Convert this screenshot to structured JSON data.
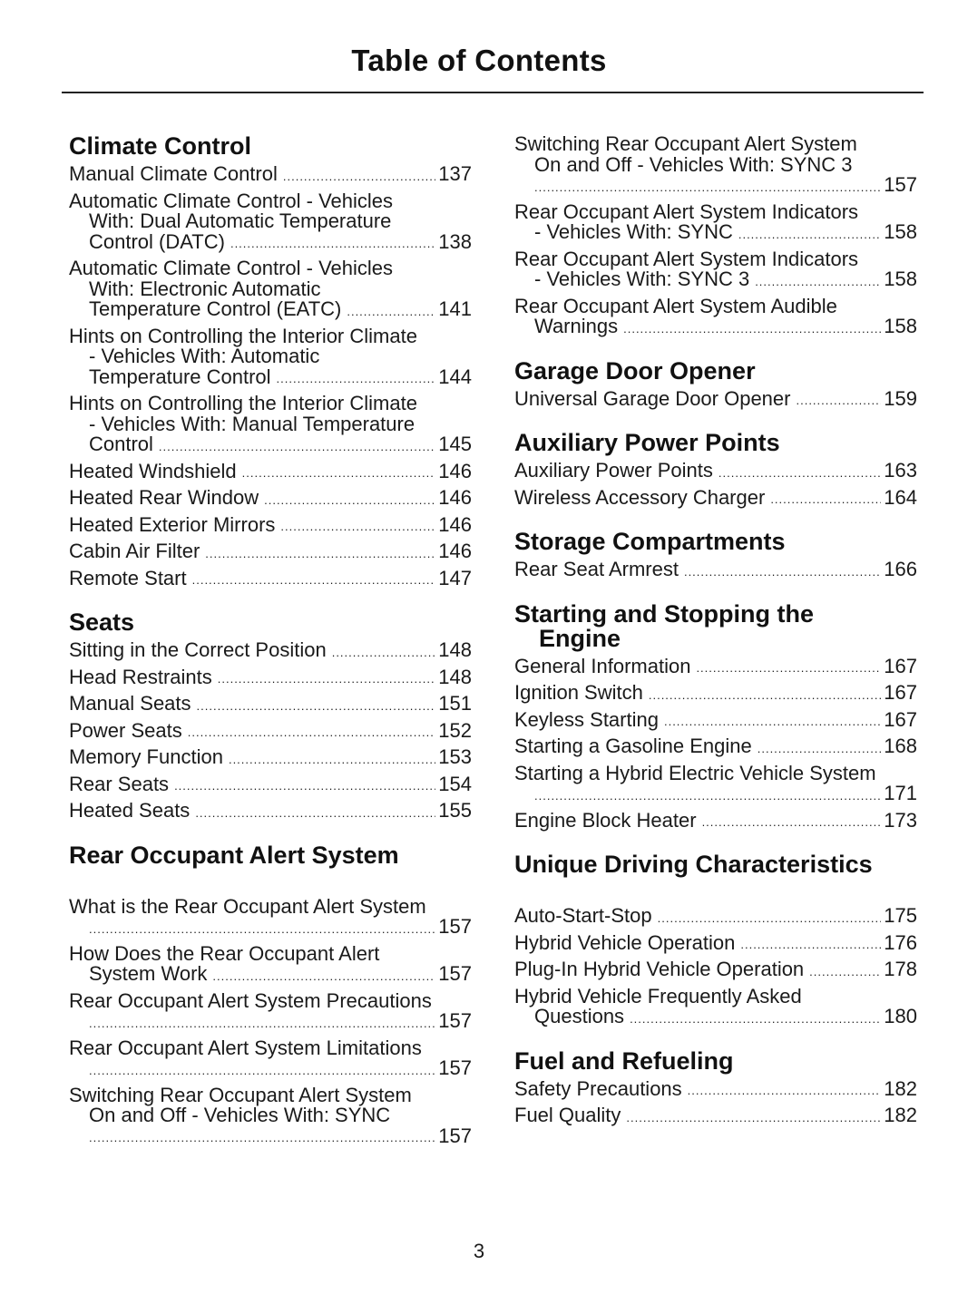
{
  "title": "Table of Contents",
  "page_number": "3",
  "left": [
    {
      "heading": [
        "Climate Control"
      ],
      "entries": [
        {
          "lines": [
            "Manual Climate Control"
          ],
          "page": "137"
        },
        {
          "lines": [
            "Automatic Climate Control - Vehicles",
            "With: Dual Automatic Temperature",
            "Control (DATC)"
          ],
          "page": "138"
        },
        {
          "lines": [
            "Automatic Climate Control - Vehicles",
            "With: Electronic Automatic",
            "Temperature Control (EATC)"
          ],
          "page": "141"
        },
        {
          "lines": [
            "Hints on Controlling the Interior Climate",
            "- Vehicles With: Automatic",
            "Temperature Control"
          ],
          "page": "144"
        },
        {
          "lines": [
            "Hints on Controlling the Interior Climate",
            "- Vehicles With: Manual Temperature",
            "Control"
          ],
          "page": "145"
        },
        {
          "lines": [
            "Heated Windshield"
          ],
          "page": "146"
        },
        {
          "lines": [
            "Heated Rear Window"
          ],
          "page": "146"
        },
        {
          "lines": [
            "Heated Exterior Mirrors"
          ],
          "page": "146"
        },
        {
          "lines": [
            "Cabin Air Filter"
          ],
          "page": "146"
        },
        {
          "lines": [
            "Remote Start"
          ],
          "page": "147"
        }
      ]
    },
    {
      "heading": [
        "Seats"
      ],
      "entries": [
        {
          "lines": [
            "Sitting in the Correct Position"
          ],
          "page": "148"
        },
        {
          "lines": [
            "Head Restraints"
          ],
          "page": "148"
        },
        {
          "lines": [
            "Manual Seats"
          ],
          "page": "151"
        },
        {
          "lines": [
            "Power Seats"
          ],
          "page": "152"
        },
        {
          "lines": [
            "Memory Function"
          ],
          "page": "153"
        },
        {
          "lines": [
            "Rear Seats"
          ],
          "page": "154"
        },
        {
          "lines": [
            "Heated Seats"
          ],
          "page": "155"
        }
      ]
    },
    {
      "heading": [
        "Rear Occupant Alert System"
      ],
      "gap": true,
      "entries": [
        {
          "lines": [
            "What is the Rear Occupant Alert System",
            ""
          ],
          "page": "157"
        },
        {
          "lines": [
            "How Does the Rear Occupant Alert",
            "System Work"
          ],
          "page": "157"
        },
        {
          "lines": [
            "Rear Occupant Alert System Precautions",
            ""
          ],
          "page": "157"
        },
        {
          "lines": [
            "Rear Occupant Alert System Limitations",
            ""
          ],
          "page": "157"
        },
        {
          "lines": [
            "Switching Rear Occupant Alert System",
            "On and Off - Vehicles With: SYNC",
            ""
          ],
          "page": "157"
        }
      ]
    }
  ],
  "right": [
    {
      "heading": [],
      "entries": [
        {
          "lines": [
            "Switching Rear Occupant Alert System",
            "On and Off - Vehicles With: SYNC 3",
            ""
          ],
          "page": "157"
        },
        {
          "lines": [
            "Rear Occupant Alert System Indicators",
            "- Vehicles With: SYNC"
          ],
          "page": "158"
        },
        {
          "lines": [
            "Rear Occupant Alert System Indicators",
            "- Vehicles With: SYNC 3"
          ],
          "page": "158"
        },
        {
          "lines": [
            "Rear Occupant Alert System Audible",
            "Warnings"
          ],
          "page": "158"
        }
      ]
    },
    {
      "heading": [
        "Garage Door Opener"
      ],
      "entries": [
        {
          "lines": [
            "Universal Garage Door Opener"
          ],
          "page": "159"
        }
      ]
    },
    {
      "heading": [
        "Auxiliary Power Points"
      ],
      "entries": [
        {
          "lines": [
            "Auxiliary Power Points"
          ],
          "page": "163"
        },
        {
          "lines": [
            "Wireless Accessory Charger"
          ],
          "page": "164"
        }
      ]
    },
    {
      "heading": [
        "Storage Compartments"
      ],
      "entries": [
        {
          "lines": [
            "Rear Seat Armrest"
          ],
          "page": "166"
        }
      ]
    },
    {
      "heading": [
        "Starting and Stopping the",
        "Engine"
      ],
      "entries": [
        {
          "lines": [
            "General Information"
          ],
          "page": "167"
        },
        {
          "lines": [
            "Ignition Switch"
          ],
          "page": "167"
        },
        {
          "lines": [
            "Keyless Starting"
          ],
          "page": "167"
        },
        {
          "lines": [
            "Starting a Gasoline Engine"
          ],
          "page": "168"
        },
        {
          "lines": [
            "Starting a Hybrid Electric Vehicle System",
            ""
          ],
          "page": "171"
        },
        {
          "lines": [
            "Engine Block Heater"
          ],
          "page": "173"
        }
      ]
    },
    {
      "heading": [
        "Unique Driving Characteristics"
      ],
      "gap": true,
      "entries": [
        {
          "lines": [
            "Auto-Start-Stop"
          ],
          "page": "175"
        },
        {
          "lines": [
            "Hybrid Vehicle Operation"
          ],
          "page": "176"
        },
        {
          "lines": [
            "Plug-In Hybrid Vehicle Operation"
          ],
          "page": "178"
        },
        {
          "lines": [
            "Hybrid Vehicle Frequently Asked",
            "Questions"
          ],
          "page": "180"
        }
      ]
    },
    {
      "heading": [
        "Fuel and Refueling"
      ],
      "entries": [
        {
          "lines": [
            "Safety Precautions"
          ],
          "page": "182"
        },
        {
          "lines": [
            "Fuel Quality"
          ],
          "page": "182"
        }
      ]
    }
  ]
}
